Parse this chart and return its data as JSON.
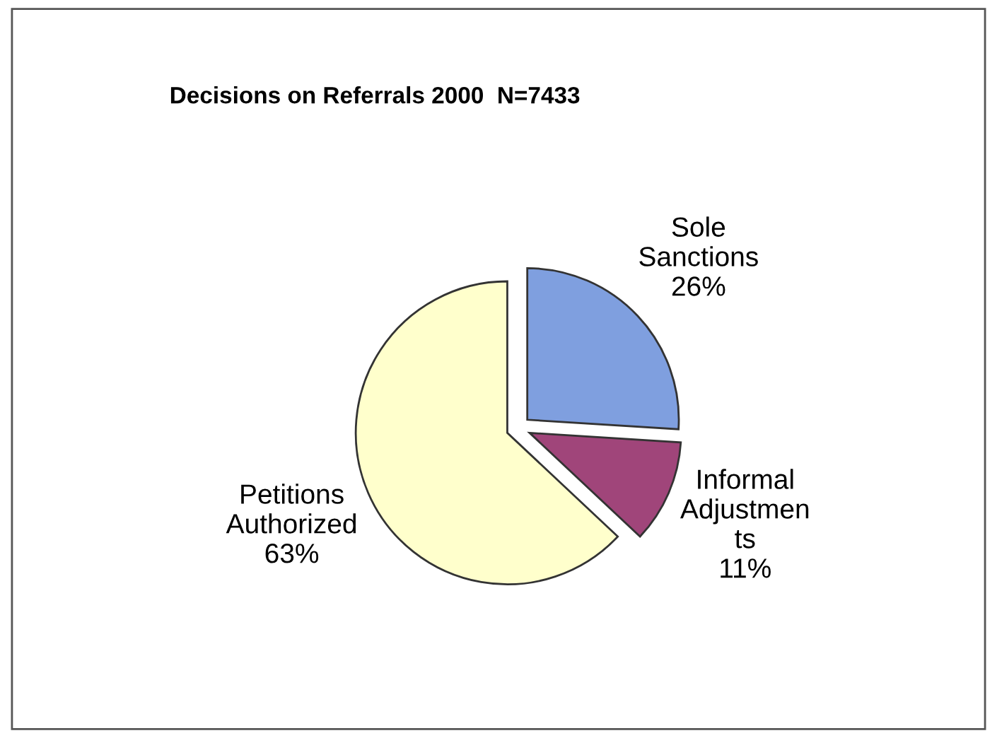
{
  "chart_data": {
    "type": "pie",
    "title": "Decisions on Referrals 2000  N=7433",
    "categories": [
      "Sole\nSanctions",
      "Informal\nAdjustmen\nts",
      "Petitions\nAuthorized"
    ],
    "values": [
      26,
      11,
      63
    ],
    "value_labels": [
      "26%",
      "11%",
      "63%"
    ],
    "colors": [
      "#7f9fdf",
      "#a0457a",
      "#ffffcc"
    ],
    "legend": false
  }
}
